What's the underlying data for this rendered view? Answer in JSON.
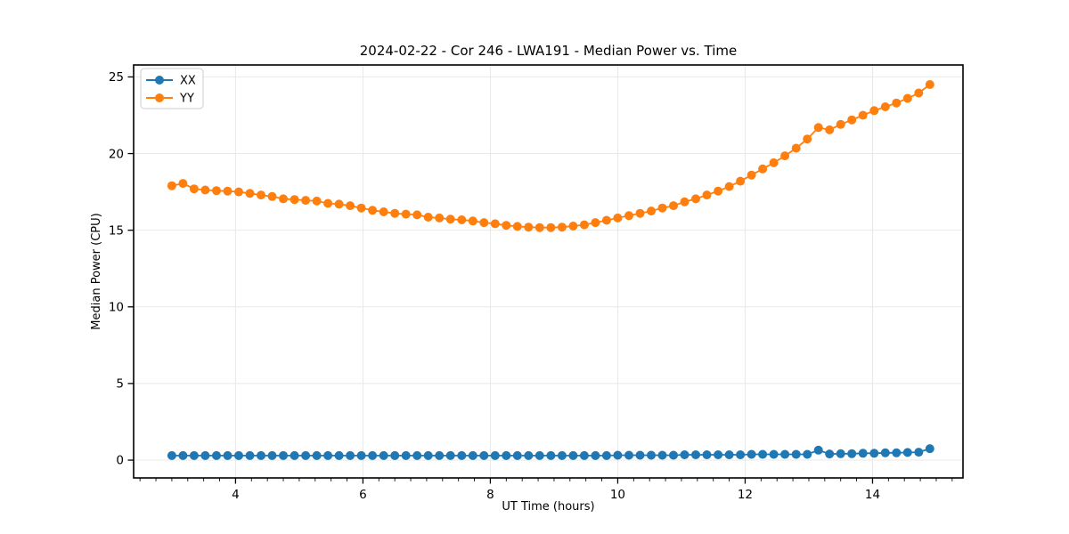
{
  "chart_data": {
    "type": "line",
    "title": "2024-02-22 - Cor 246 - LWA191 - Median Power vs. Time",
    "xlabel": "UT Time (hours)",
    "ylabel": "Median Power (CPU)",
    "xlim": [
      2.4,
      15.42
    ],
    "ylim": [
      -1.16,
      25.78
    ],
    "xticks": [
      4,
      6,
      8,
      10,
      12,
      14
    ],
    "yticks": [
      0,
      5,
      10,
      15,
      20,
      25
    ],
    "minor_xtick_step": 0.25,
    "grid": true,
    "legend_position": "upper left",
    "legend_entries": [
      "XX",
      "YY"
    ],
    "x": [
      3.0,
      3.175,
      3.35,
      3.525,
      3.7,
      3.875,
      4.05,
      4.225,
      4.4,
      4.575,
      4.75,
      4.925,
      5.1,
      5.275,
      5.45,
      5.625,
      5.8,
      5.975,
      6.15,
      6.325,
      6.5,
      6.675,
      6.85,
      7.025,
      7.2,
      7.375,
      7.55,
      7.725,
      7.9,
      8.075,
      8.25,
      8.425,
      8.6,
      8.775,
      8.95,
      9.125,
      9.3,
      9.475,
      9.65,
      9.825,
      10.0,
      10.175,
      10.35,
      10.525,
      10.7,
      10.875,
      11.05,
      11.225,
      11.4,
      11.575,
      11.75,
      11.925,
      12.1,
      12.275,
      12.45,
      12.625,
      12.8,
      12.975,
      13.15,
      13.325,
      13.5,
      13.675,
      13.85,
      14.025,
      14.2,
      14.375,
      14.55,
      14.725,
      14.9
    ],
    "series": [
      {
        "name": "XX",
        "color": "#1f77b4",
        "values": [
          0.3,
          0.3,
          0.3,
          0.3,
          0.3,
          0.3,
          0.3,
          0.3,
          0.3,
          0.3,
          0.3,
          0.3,
          0.3,
          0.3,
          0.3,
          0.3,
          0.3,
          0.3,
          0.3,
          0.3,
          0.3,
          0.3,
          0.3,
          0.3,
          0.3,
          0.3,
          0.3,
          0.3,
          0.3,
          0.3,
          0.3,
          0.3,
          0.3,
          0.3,
          0.3,
          0.3,
          0.3,
          0.3,
          0.3,
          0.3,
          0.32,
          0.32,
          0.32,
          0.32,
          0.32,
          0.32,
          0.35,
          0.35,
          0.35,
          0.35,
          0.35,
          0.35,
          0.38,
          0.38,
          0.38,
          0.38,
          0.38,
          0.38,
          0.65,
          0.4,
          0.42,
          0.42,
          0.45,
          0.45,
          0.48,
          0.48,
          0.5,
          0.52,
          0.75
        ]
      },
      {
        "name": "YY",
        "color": "#ff7f0e",
        "values": [
          17.9,
          18.05,
          17.7,
          17.62,
          17.58,
          17.55,
          17.5,
          17.4,
          17.3,
          17.2,
          17.05,
          17.0,
          16.95,
          16.9,
          16.75,
          16.7,
          16.6,
          16.45,
          16.3,
          16.2,
          16.1,
          16.05,
          16.0,
          15.85,
          15.8,
          15.72,
          15.68,
          15.6,
          15.5,
          15.42,
          15.32,
          15.25,
          15.2,
          15.17,
          15.17,
          15.2,
          15.27,
          15.35,
          15.5,
          15.65,
          15.8,
          15.95,
          16.1,
          16.25,
          16.45,
          16.6,
          16.85,
          17.05,
          17.3,
          17.55,
          17.85,
          18.2,
          18.6,
          19.0,
          19.4,
          19.85,
          20.35,
          20.95,
          21.7,
          21.55,
          21.9,
          22.2,
          22.5,
          22.8,
          23.05,
          23.3,
          23.6,
          23.95,
          24.5
        ]
      }
    ],
    "style": {
      "grid_color": "#e8e8e8",
      "spine_color": "#000000",
      "tick_color": "#000000",
      "background": "#ffffff"
    }
  }
}
